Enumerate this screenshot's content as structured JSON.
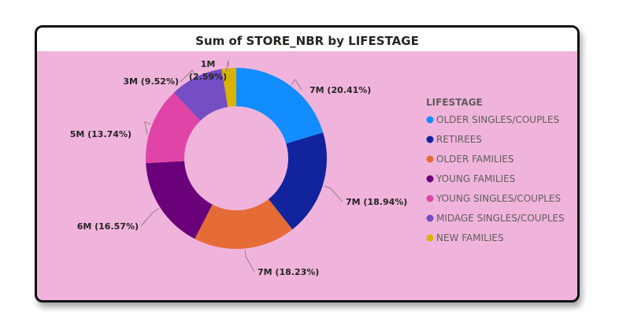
{
  "chart_data": {
    "type": "donut",
    "title": "Sum of STORE_NBR by LIFESTAGE",
    "legend_title": "LIFESTAGE",
    "legend_position": "right",
    "categories": [
      "OLDER SINGLES/COUPLES",
      "RETIREES",
      "OLDER FAMILIES",
      "YOUNG FAMILIES",
      "YOUNG SINGLES/COUPLES",
      "MIDAGE SINGLES/COUPLES",
      "NEW FAMILIES"
    ],
    "percentages": [
      20.41,
      18.94,
      18.23,
      16.57,
      13.74,
      9.52,
      2.59
    ],
    "data_labels": [
      "7M (20.41%)",
      "7M (18.94%)",
      "7M (18.23%)",
      "6M (16.57%)",
      "5M (13.74%)",
      "3M (9.52%)",
      "1M (2.59%)"
    ],
    "colors": [
      "#118dff",
      "#12239e",
      "#e66c37",
      "#6b007b",
      "#e044a7",
      "#744ec2",
      "#d9b300"
    ]
  }
}
